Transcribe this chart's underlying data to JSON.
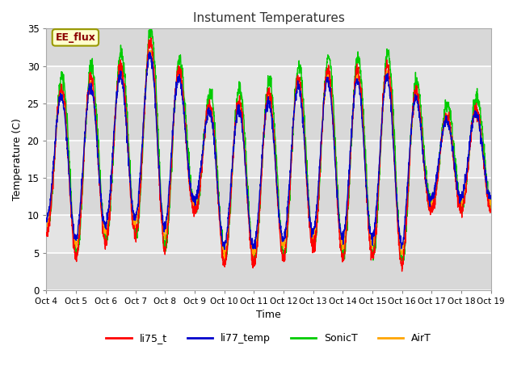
{
  "title": "Instument Temperatures",
  "xlabel": "Time",
  "ylabel": "Temperature (C)",
  "ylim": [
    0,
    35
  ],
  "xlim": [
    0,
    15
  ],
  "x_tick_labels": [
    "Oct 4",
    "Oct 5",
    "Oct 6",
    "Oct 7",
    "Oct 8",
    "Oct 9",
    "Oct 10",
    "Oct 11",
    "Oct 12",
    "Oct 13",
    "Oct 14",
    "Oct 15",
    "Oct 16",
    "Oct 17",
    "Oct 18",
    "Oct 19"
  ],
  "annotation_text": "EE_flux",
  "annotation_color": "#8b0000",
  "annotation_bg": "#ffffcc",
  "bg_color": "#e8e8e8",
  "band_color_light": "#d8d8d8",
  "band_color_dark": "#e8e8e8",
  "series_colors": [
    "#ff0000",
    "#0000cc",
    "#00cc00",
    "#ffa500"
  ],
  "series_names": [
    "li75_t",
    "li77_temp",
    "SonicT",
    "AirT"
  ],
  "grid_color": "#cccccc",
  "title_color": "#333333",
  "day_peaks": [
    25,
    28,
    28,
    31,
    34,
    24,
    25,
    25,
    27,
    29,
    29,
    29,
    30,
    22,
    24
  ],
  "day_mins": [
    8,
    5,
    7,
    8,
    6,
    11,
    4,
    4,
    5,
    6,
    5,
    5,
    4,
    11,
    11
  ]
}
